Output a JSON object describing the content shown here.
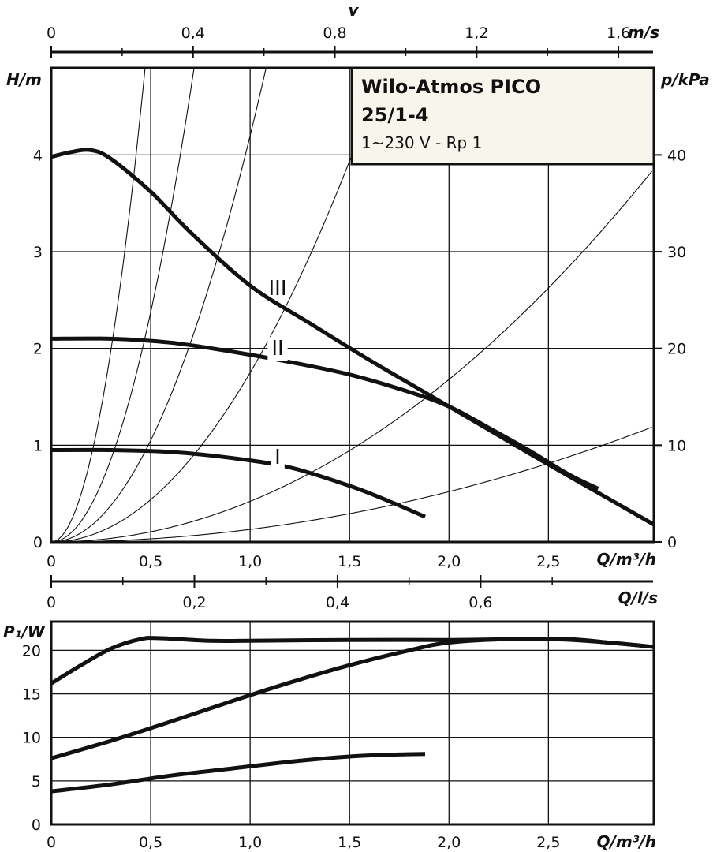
{
  "chart_data": [
    {
      "type": "line",
      "title": "Wilo-Atmos PICO",
      "subtitle": "25/1-4",
      "note": "1~230 V - Rp 1",
      "xlabel": "Q/m³/h",
      "ylabel": "H/m",
      "y2label": "p/kPa",
      "toplabel_letter": "v",
      "toplabel": "m/s",
      "xlim": [
        0,
        3.03
      ],
      "ylim": [
        0,
        4.9
      ],
      "y2lim": [
        0,
        49
      ],
      "top_xlim": [
        0,
        1.7
      ],
      "xticks": [
        "0",
        "0,5",
        "1,0",
        "1,5",
        "2,0",
        "2,5"
      ],
      "yticks": [
        "0",
        "1",
        "2",
        "3",
        "4"
      ],
      "y2ticks": [
        "0",
        "10",
        "20",
        "30",
        "40"
      ],
      "top_xticks": [
        "0",
        "0,4",
        "0,8",
        "1,2",
        "1,6"
      ],
      "curve_labels": [
        "III",
        "II",
        "I"
      ],
      "series": [
        {
          "name": "III",
          "x": [
            0,
            0.1,
            0.2,
            0.3,
            0.5,
            0.7,
            1.0,
            1.3,
            1.6,
            1.9,
            2.2,
            2.5,
            2.8,
            3.03
          ],
          "y": [
            3.98,
            4.03,
            4.05,
            3.96,
            3.62,
            3.2,
            2.65,
            2.26,
            1.88,
            1.52,
            1.16,
            0.8,
            0.45,
            0.18
          ]
        },
        {
          "name": "II",
          "x": [
            0,
            0.3,
            0.6,
            0.9,
            1.2,
            1.5,
            1.8,
            2.0,
            2.2,
            2.4,
            2.6,
            2.75
          ],
          "y": [
            2.1,
            2.1,
            2.06,
            1.97,
            1.86,
            1.73,
            1.55,
            1.4,
            1.18,
            0.95,
            0.7,
            0.55
          ]
        },
        {
          "name": "I",
          "x": [
            0,
            0.3,
            0.6,
            0.9,
            1.2,
            1.5,
            1.7,
            1.88
          ],
          "y": [
            0.95,
            0.95,
            0.93,
            0.87,
            0.77,
            0.58,
            0.42,
            0.26
          ]
        }
      ],
      "system_curve_coefficients": [
        22,
        9.5,
        4.2,
        1.75,
        0.42,
        0.13
      ]
    },
    {
      "type": "line",
      "xlabel": "Q/m³/h",
      "ylabel": "P₁/W",
      "toplabel": "Q/l/s",
      "xlim": [
        0,
        3.03
      ],
      "ylim": [
        0,
        23.3
      ],
      "top_xlim": [
        0,
        0.842
      ],
      "xticks": [
        "0",
        "0,5",
        "1,0",
        "1,5",
        "2,0",
        "2,5"
      ],
      "yticks": [
        "0",
        "5",
        "10",
        "15",
        "20"
      ],
      "top_xticks": [
        "0",
        "0,2",
        "0,4",
        "0,6"
      ],
      "series": [
        {
          "name": "III",
          "x": [
            0,
            0.15,
            0.3,
            0.45,
            0.55,
            0.8,
            1.0,
            1.5,
            2.0,
            2.5,
            2.8,
            3.03
          ],
          "y": [
            16.2,
            18.3,
            20.2,
            21.3,
            21.4,
            21.1,
            21.1,
            21.2,
            21.2,
            21.3,
            20.9,
            20.4
          ]
        },
        {
          "name": "II",
          "x": [
            0,
            0.3,
            0.6,
            0.9,
            1.2,
            1.5,
            1.8,
            2.0,
            2.3,
            2.6,
            2.8,
            3.03
          ],
          "y": [
            7.6,
            9.6,
            11.8,
            14.1,
            16.3,
            18.3,
            20.0,
            20.9,
            21.3,
            21.3,
            20.9,
            20.4
          ]
        },
        {
          "name": "I",
          "x": [
            0,
            0.3,
            0.6,
            0.9,
            1.2,
            1.5,
            1.7,
            1.88
          ],
          "y": [
            3.8,
            4.6,
            5.6,
            6.4,
            7.2,
            7.8,
            8.0,
            8.1
          ]
        }
      ]
    }
  ]
}
